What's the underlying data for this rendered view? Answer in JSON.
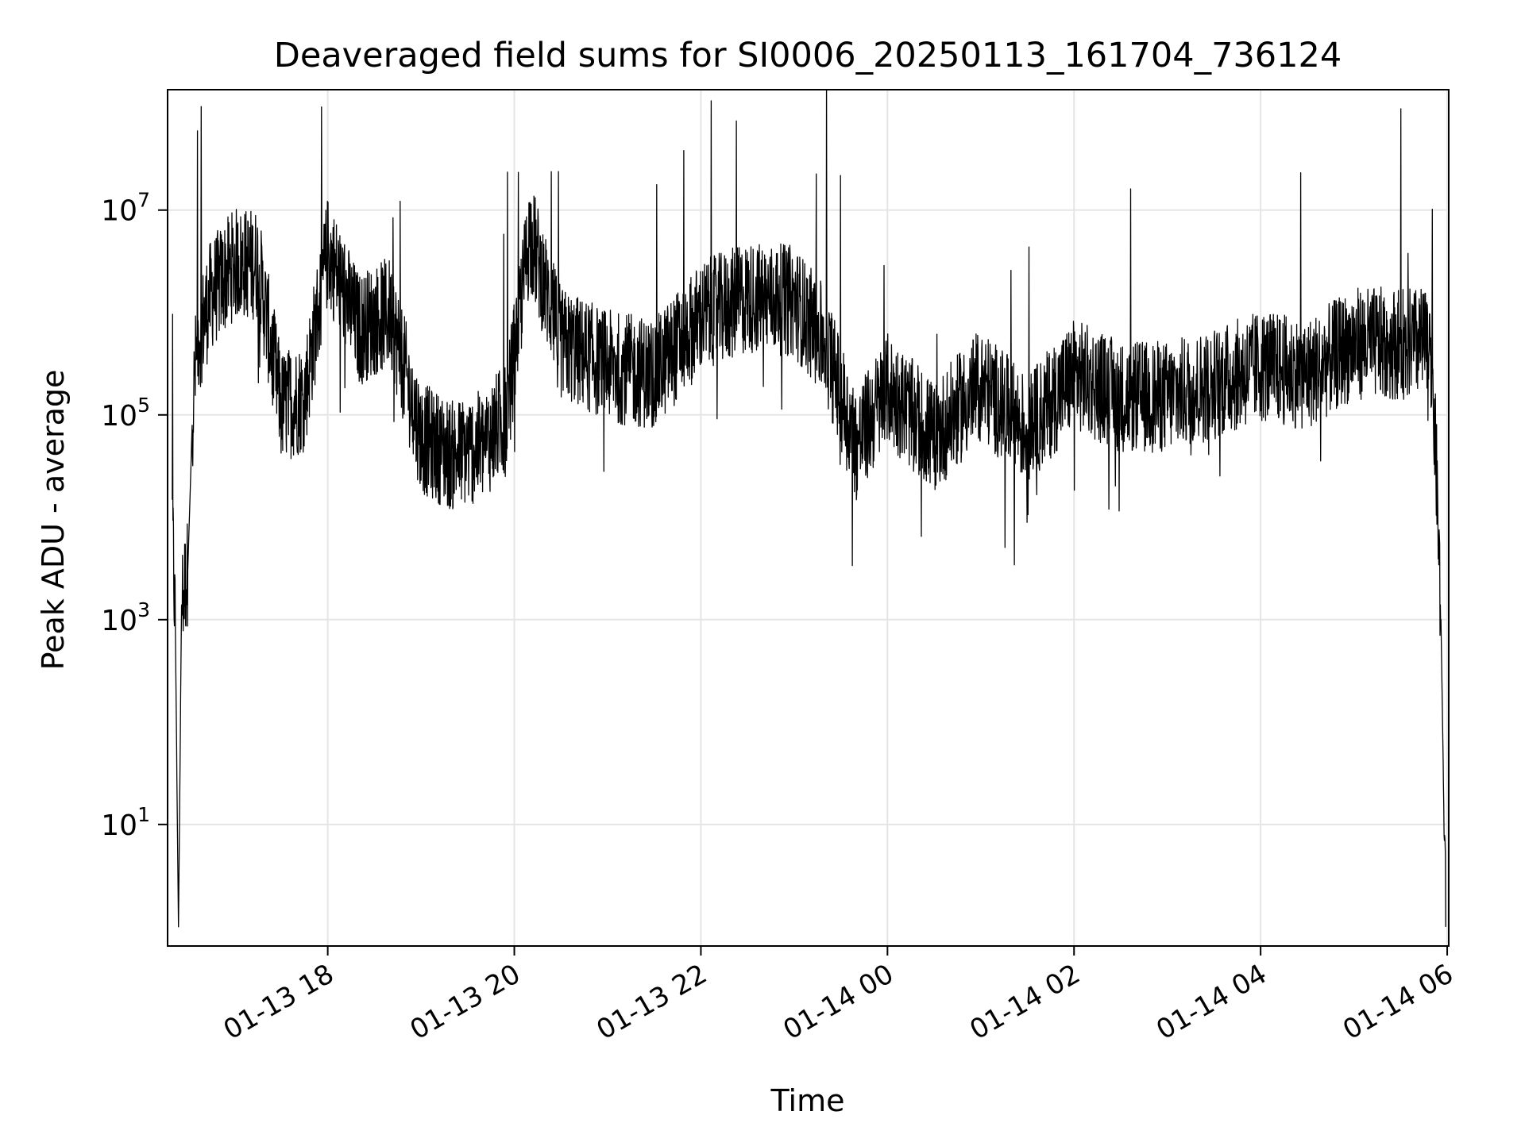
{
  "chart_data": {
    "type": "line",
    "title": "Deaveraged field sums for SI0006_20250113_161704_736124",
    "xlabel": "Time",
    "ylabel": "Peak ADU - average",
    "xscale": "time",
    "yscale": "log",
    "xlim": [
      "2025-01-13T16:17:00",
      "2025-01-14T06:01:00"
    ],
    "ylim": [
      0.65,
      150000000
    ],
    "grid": true,
    "line_color": "#000000",
    "grid_color": "#e5e5e5",
    "x_ticks": [
      {
        "t": "2025-01-13T18:00:00",
        "label": "01-13 18"
      },
      {
        "t": "2025-01-13T20:00:00",
        "label": "01-13 20"
      },
      {
        "t": "2025-01-13T22:00:00",
        "label": "01-13 22"
      },
      {
        "t": "2025-01-14T00:00:00",
        "label": "01-14 00"
      },
      {
        "t": "2025-01-14T02:00:00",
        "label": "01-14 02"
      },
      {
        "t": "2025-01-14T04:00:00",
        "label": "01-14 04"
      },
      {
        "t": "2025-01-14T06:00:00",
        "label": "01-14 06"
      }
    ],
    "y_ticks": [
      {
        "value": 10,
        "base": "10",
        "exp": "1"
      },
      {
        "value": 1000,
        "base": "10",
        "exp": "3"
      },
      {
        "value": 100000,
        "base": "10",
        "exp": "5"
      },
      {
        "value": 10000000,
        "base": "10",
        "exp": "7"
      }
    ],
    "series": [
      {
        "x": [
          "2025-01-13T16:20:00",
          "2025-01-13T16:22:00",
          "2025-01-13T16:24:00",
          "2025-01-13T16:26:00",
          "2025-01-13T16:30:00",
          "2025-01-13T16:33:00",
          "2025-01-13T16:36:00",
          "2025-01-13T16:45:00",
          "2025-01-13T17:00:00",
          "2025-01-13T17:15:00",
          "2025-01-13T17:30:00",
          "2025-01-13T17:45:00",
          "2025-01-13T18:00:00",
          "2025-01-13T18:20:00",
          "2025-01-13T18:40:00",
          "2025-01-13T19:00:00",
          "2025-01-13T19:20:00",
          "2025-01-13T19:40:00",
          "2025-01-13T19:55:00",
          "2025-01-13T20:10:00",
          "2025-01-13T20:30:00",
          "2025-01-13T21:00:00",
          "2025-01-13T21:30:00",
          "2025-01-13T22:00:00",
          "2025-01-13T22:30:00",
          "2025-01-13T23:00:00",
          "2025-01-13T23:20:00",
          "2025-01-13T23:40:00",
          "2025-01-14T00:00:00",
          "2025-01-14T00:30:00",
          "2025-01-14T01:00:00",
          "2025-01-14T01:30:00",
          "2025-01-14T02:00:00",
          "2025-01-14T02:30:00",
          "2025-01-14T03:00:00",
          "2025-01-14T03:30:00",
          "2025-01-14T04:00:00",
          "2025-01-14T04:30:00",
          "2025-01-14T05:00:00",
          "2025-01-14T05:30:00",
          "2025-01-14T05:45:00",
          "2025-01-14T05:50:00",
          "2025-01-14T05:53:00",
          "2025-01-14T05:56:00",
          "2025-01-14T05:58:00",
          "2025-01-14T05:59:00"
        ],
        "values": [
          10000,
          800,
          1,
          1500,
          3000,
          100000,
          500000,
          1500000,
          3000000,
          3000000,
          120000,
          150000,
          4000000,
          700000,
          1000000,
          60000,
          40000,
          50000,
          100000,
          6000000,
          500000,
          300000,
          250000,
          900000,
          1400000,
          1300000,
          500000,
          50000,
          180000,
          60000,
          200000,
          70000,
          250000,
          150000,
          150000,
          200000,
          300000,
          250000,
          500000,
          500000,
          500000,
          300000,
          30000,
          1000,
          10,
          1
        ]
      }
    ]
  }
}
